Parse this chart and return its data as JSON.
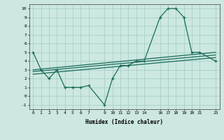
{
  "xlabel": "Humidex (Indice chaleur)",
  "ylabel": "",
  "bg_color": "#cce8e0",
  "grid_color": "#a0ccc4",
  "line_color": "#1a6b5a",
  "x_ticks": [
    0,
    1,
    2,
    3,
    4,
    5,
    6,
    7,
    9,
    10,
    11,
    12,
    13,
    14,
    16,
    17,
    18,
    19,
    20,
    21,
    23
  ],
  "ylim": [
    -1.5,
    10.5
  ],
  "xlim": [
    -0.5,
    23.5
  ],
  "main_x": [
    0,
    1,
    2,
    3,
    4,
    5,
    6,
    7,
    9,
    10,
    11,
    12,
    13,
    14,
    16,
    17,
    18,
    19,
    20,
    21,
    23
  ],
  "main_y": [
    5,
    3,
    2,
    3,
    1,
    1,
    1,
    1.2,
    -1,
    2,
    3.5,
    3.5,
    4,
    4,
    9,
    10,
    10,
    9,
    5,
    5,
    4
  ],
  "trend1_x": [
    0,
    23
  ],
  "trend1_y": [
    3.0,
    5.0
  ],
  "trend2_x": [
    0,
    23
  ],
  "trend2_y": [
    2.8,
    4.7
  ],
  "trend3_x": [
    0,
    23
  ],
  "trend3_y": [
    2.5,
    4.4
  ],
  "yticks": [
    -1,
    0,
    1,
    2,
    3,
    4,
    5,
    6,
    7,
    8,
    9,
    10
  ]
}
